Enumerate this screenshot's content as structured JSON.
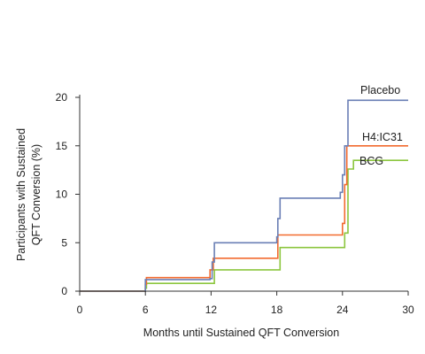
{
  "chart_data": {
    "type": "line",
    "step": true,
    "xlabel": "Months until Sustained QFT Conversion",
    "ylabel": "Participants with Sustained QFT Conversion (%)",
    "ylabel_lines": [
      "Participants with Sustained",
      "QFT Conversion (%)"
    ],
    "xlim": [
      0,
      30
    ],
    "ylim": [
      0,
      20
    ],
    "xticks": [
      0,
      6,
      12,
      18,
      24,
      30
    ],
    "yticks": [
      0,
      5,
      10,
      15,
      20
    ],
    "grid": false,
    "legend": "labels at line ends (right)",
    "series": [
      {
        "name": "Placebo",
        "color": "#6a7fb5",
        "x": [
          0,
          6,
          6,
          11.9,
          12.1,
          12.3,
          18,
          18.1,
          18.3,
          23.8,
          24.0,
          24.2,
          24.5,
          30
        ],
        "y": [
          0,
          0.6,
          1.2,
          1.3,
          3.0,
          5.0,
          5.6,
          7.5,
          9.6,
          10.2,
          12.0,
          15.0,
          19.7,
          19.7
        ]
      },
      {
        "name": "H4:IC31",
        "color": "#f26a2e",
        "x": [
          0,
          6,
          6.1,
          11.7,
          11.9,
          12.2,
          17.9,
          18.1,
          23.8,
          24.0,
          24.2,
          24.4,
          30
        ],
        "y": [
          0,
          0.7,
          1.4,
          1.4,
          2.2,
          3.4,
          3.4,
          5.8,
          5.8,
          7.0,
          11.0,
          15.0,
          15.0
        ]
      },
      {
        "name": "BCG",
        "color": "#8cc63e",
        "x": [
          0,
          6,
          6.1,
          12.1,
          12.3,
          18.1,
          18.3,
          24.0,
          24.2,
          24.5,
          25.0,
          30
        ],
        "y": [
          0,
          0.3,
          0.8,
          0.8,
          2.2,
          2.2,
          4.5,
          4.5,
          6.0,
          12.6,
          13.5,
          13.5
        ]
      }
    ]
  }
}
